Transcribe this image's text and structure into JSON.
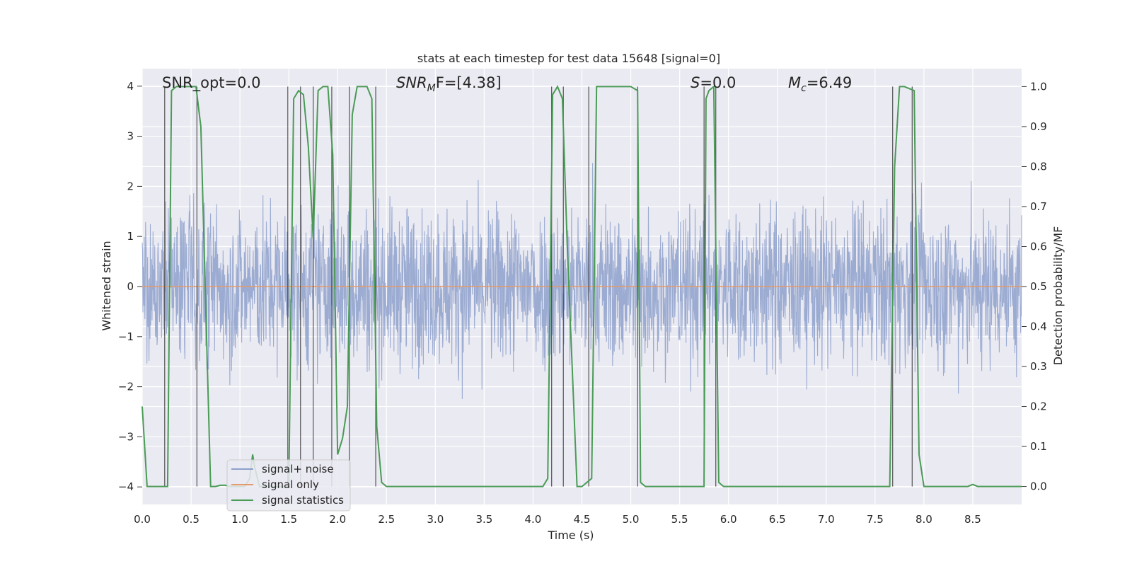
{
  "chart_data": {
    "type": "line",
    "title": "stats at each timestep for test data 15648 [signal=0]",
    "xlabel": "Time (s)",
    "ylabel_left": "Whitened strain",
    "ylabel_right": "Detection probability/MF",
    "xlim": [
      0.0,
      9.0
    ],
    "ylim_left": [
      -4.35,
      4.35
    ],
    "ylim_right": [
      -0.045,
      1.045
    ],
    "x_ticks": [
      "0.0",
      "0.5",
      "1.0",
      "1.5",
      "2.0",
      "2.5",
      "3.0",
      "3.5",
      "4.0",
      "4.5",
      "5.0",
      "5.5",
      "6.0",
      "6.5",
      "7.0",
      "7.5",
      "8.0",
      "8.5"
    ],
    "y_ticks_left": [
      "4",
      "3",
      "2",
      "1",
      "0",
      "−1",
      "−2",
      "−3",
      "−4"
    ],
    "y_ticks_right": [
      "1.0",
      "0.9",
      "0.8",
      "0.7",
      "0.6",
      "0.5",
      "0.4",
      "0.3",
      "0.2",
      "0.1",
      "0.0"
    ],
    "grid": true,
    "legend_position": "lower-left",
    "annotations": {
      "snr_opt": "SNR_opt=0.0",
      "snr_mf_sym": "SNR",
      "snr_mf_sub": "M",
      "snr_mf_rest": "F=[4.38]",
      "s_sym": "S",
      "s_rest": "=0.0",
      "mc_sym": "M",
      "mc_sub": "c",
      "mc_rest": "=6.49"
    },
    "series": [
      {
        "name": "signal+ noise",
        "color": "#8da0cb",
        "description_range": [
          -4.0,
          3.9
        ]
      },
      {
        "name": "signal only",
        "color": "#e49a6a",
        "values_constant": 0.0
      },
      {
        "name": "signal statistics",
        "color": "#4a9b55",
        "x": [
          0.0,
          0.05,
          0.25,
          0.26,
          0.3,
          0.35,
          0.45,
          0.55,
          0.6,
          0.7,
          0.75,
          0.8,
          0.85,
          0.9,
          1.0,
          1.05,
          1.1,
          1.13,
          1.15,
          1.2,
          1.25,
          1.3,
          1.5,
          1.55,
          1.6,
          1.65,
          1.7,
          1.75,
          1.8,
          1.85,
          1.9,
          1.95,
          2.0,
          2.05,
          2.1,
          2.15,
          2.2,
          2.25,
          2.3,
          2.35,
          2.4,
          2.45,
          2.5,
          2.55,
          2.6,
          3.0,
          4.1,
          4.15,
          4.2,
          4.25,
          4.3,
          4.35,
          4.45,
          4.5,
          4.6,
          4.65,
          4.7,
          5.0,
          5.07,
          5.1,
          5.15,
          5.2,
          5.7,
          5.75,
          5.77,
          5.8,
          5.85,
          5.9,
          5.95,
          6.0,
          7.0,
          7.65,
          7.7,
          7.75,
          7.8,
          7.9,
          7.95,
          8.0,
          8.05,
          8.1,
          8.3,
          8.45,
          8.5,
          8.55,
          9.0
        ],
        "values": [
          0.2,
          0.0,
          0.0,
          0.0,
          0.99,
          1.0,
          1.0,
          1.0,
          0.9,
          0.0,
          0.0,
          0.003,
          0.003,
          0.0,
          0.0,
          0.0,
          0.02,
          0.08,
          0.05,
          0.0,
          0.0,
          0.0,
          0.0,
          0.97,
          0.99,
          0.98,
          0.85,
          0.62,
          0.99,
          1.0,
          1.0,
          0.83,
          0.08,
          0.12,
          0.2,
          0.93,
          1.0,
          1.0,
          1.0,
          0.97,
          0.15,
          0.01,
          0.0,
          0.0,
          0.0,
          0.0,
          0.0,
          0.02,
          0.98,
          1.0,
          0.97,
          0.6,
          0.0,
          0.0,
          0.02,
          1.0,
          1.0,
          1.0,
          0.99,
          0.01,
          0.0,
          0.0,
          0.0,
          0.0,
          0.97,
          0.99,
          1.0,
          0.01,
          0.0,
          0.0,
          0.0,
          0.0,
          0.8,
          1.0,
          1.0,
          0.99,
          0.08,
          0.0,
          0.0,
          0.0,
          0.0,
          0.0,
          0.005,
          0.0,
          0.0
        ]
      }
    ],
    "vertical_markers_x": [
      0.23,
      0.56,
      1.49,
      1.62,
      1.75,
      1.94,
      2.12,
      2.39,
      4.19,
      4.31,
      4.57,
      5.07,
      5.75,
      5.87,
      7.68,
      7.88
    ]
  }
}
